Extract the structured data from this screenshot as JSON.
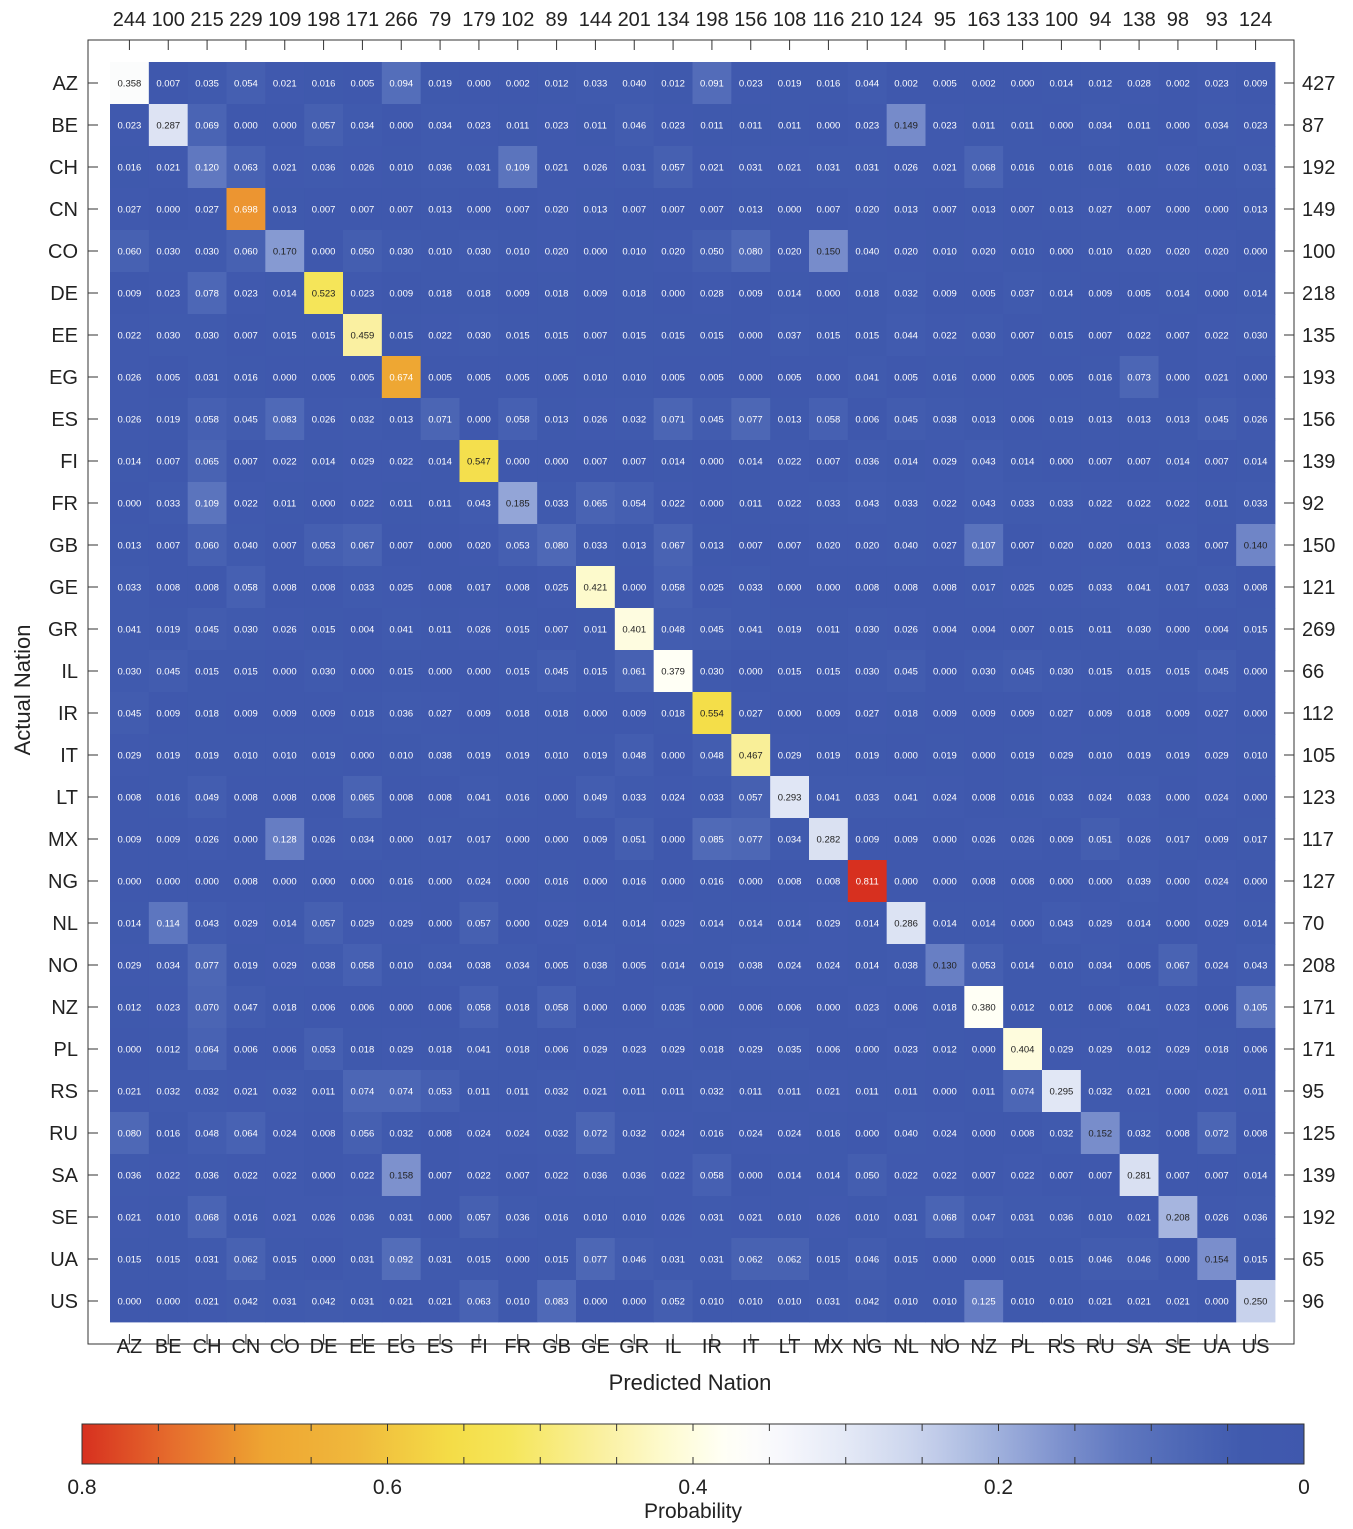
{
  "chart_data": {
    "type": "heatmap",
    "title": "",
    "xlabel": "Predicted Nation",
    "ylabel": "Actual Nation",
    "colorbar_label": "Probability",
    "colorbar_ticks": [
      "0.8",
      "0.6",
      "0.4",
      "0.2",
      "0"
    ],
    "colorbar_range": [
      0.8,
      0.0
    ],
    "colormap": [
      "#d7301f",
      "#f0a030",
      "#f5e84a",
      "#fdfce0",
      "#ffffff",
      "#dde3f4",
      "#9fb0dc",
      "#6278c0",
      "#3f58ad"
    ],
    "x_categories": [
      "AZ",
      "BE",
      "CH",
      "CN",
      "CO",
      "DE",
      "EE",
      "EG",
      "ES",
      "FI",
      "FR",
      "GB",
      "GE",
      "GR",
      "IL",
      "IR",
      "IT",
      "LT",
      "MX",
      "NG",
      "NL",
      "NO",
      "NZ",
      "PL",
      "RS",
      "RU",
      "SA",
      "SE",
      "UA",
      "US"
    ],
    "y_categories": [
      "AZ",
      "BE",
      "CH",
      "CN",
      "CO",
      "DE",
      "EE",
      "EG",
      "ES",
      "FI",
      "FR",
      "GB",
      "GE",
      "GR",
      "IL",
      "IR",
      "IT",
      "LT",
      "MX",
      "NG",
      "NL",
      "NO",
      "NZ",
      "PL",
      "RS",
      "RU",
      "SA",
      "SE",
      "UA",
      "US"
    ],
    "column_totals": [
      "244",
      "100",
      "215",
      "229",
      "109",
      "198",
      "171",
      "266",
      "79",
      "179",
      "102",
      "89",
      "144",
      "201",
      "134",
      "198",
      "156",
      "108",
      "116",
      "210",
      "124",
      "95",
      "163",
      "133",
      "100",
      "94",
      "138",
      "98",
      "93",
      "124"
    ],
    "row_totals": [
      "427",
      "87",
      "192",
      "149",
      "100",
      "218",
      "135",
      "193",
      "156",
      "139",
      "92",
      "150",
      "121",
      "269",
      "66",
      "112",
      "105",
      "123",
      "117",
      "127",
      "70",
      "208",
      "171",
      "171",
      "95",
      "125",
      "139",
      "192",
      "65",
      "96"
    ],
    "values": [
      [
        "0.358",
        "0.007",
        "0.035",
        "0.054",
        "0.021",
        "0.016",
        "0.005",
        "0.094",
        "0.019",
        "0.000",
        "0.002",
        "0.012",
        "0.033",
        "0.040",
        "0.012",
        "0.091",
        "0.023",
        "0.019",
        "0.016",
        "0.044",
        "0.002",
        "0.005",
        "0.002",
        "0.000",
        "0.014",
        "0.012",
        "0.028",
        "0.002",
        "0.023",
        "0.009"
      ],
      [
        "0.023",
        "0.287",
        "0.069",
        "0.000",
        "0.000",
        "0.057",
        "0.034",
        "0.000",
        "0.034",
        "0.023",
        "0.011",
        "0.023",
        "0.011",
        "0.046",
        "0.023",
        "0.011",
        "0.011",
        "0.011",
        "0.000",
        "0.023",
        "0.149",
        "0.023",
        "0.011",
        "0.011",
        "0.000",
        "0.034",
        "0.011",
        "0.000",
        "0.034",
        "0.023"
      ],
      [
        "0.016",
        "0.021",
        "0.120",
        "0.063",
        "0.021",
        "0.036",
        "0.026",
        "0.010",
        "0.036",
        "0.031",
        "0.109",
        "0.021",
        "0.026",
        "0.031",
        "0.057",
        "0.021",
        "0.031",
        "0.021",
        "0.031",
        "0.031",
        "0.026",
        "0.021",
        "0.068",
        "0.016",
        "0.016",
        "0.016",
        "0.010",
        "0.026",
        "0.010",
        "0.031"
      ],
      [
        "0.027",
        "0.000",
        "0.027",
        "0.698",
        "0.013",
        "0.007",
        "0.007",
        "0.007",
        "0.013",
        "0.000",
        "0.007",
        "0.020",
        "0.013",
        "0.007",
        "0.007",
        "0.007",
        "0.013",
        "0.000",
        "0.007",
        "0.020",
        "0.013",
        "0.007",
        "0.013",
        "0.007",
        "0.013",
        "0.027",
        "0.007",
        "0.000",
        "0.000",
        "0.013"
      ],
      [
        "0.060",
        "0.030",
        "0.030",
        "0.060",
        "0.170",
        "0.000",
        "0.050",
        "0.030",
        "0.010",
        "0.030",
        "0.010",
        "0.020",
        "0.000",
        "0.010",
        "0.020",
        "0.050",
        "0.080",
        "0.020",
        "0.150",
        "0.040",
        "0.020",
        "0.010",
        "0.020",
        "0.010",
        "0.000",
        "0.010",
        "0.020",
        "0.020",
        "0.020",
        "0.000"
      ],
      [
        "0.009",
        "0.023",
        "0.078",
        "0.023",
        "0.014",
        "0.523",
        "0.023",
        "0.009",
        "0.018",
        "0.018",
        "0.009",
        "0.018",
        "0.009",
        "0.018",
        "0.000",
        "0.028",
        "0.009",
        "0.014",
        "0.000",
        "0.018",
        "0.032",
        "0.009",
        "0.005",
        "0.037",
        "0.014",
        "0.009",
        "0.005",
        "0.014",
        "0.000",
        "0.014"
      ],
      [
        "0.022",
        "0.030",
        "0.030",
        "0.007",
        "0.015",
        "0.015",
        "0.459",
        "0.015",
        "0.022",
        "0.030",
        "0.015",
        "0.015",
        "0.007",
        "0.015",
        "0.015",
        "0.015",
        "0.000",
        "0.037",
        "0.015",
        "0.015",
        "0.044",
        "0.022",
        "0.030",
        "0.007",
        "0.015",
        "0.007",
        "0.022",
        "0.007",
        "0.022",
        "0.030"
      ],
      [
        "0.026",
        "0.005",
        "0.031",
        "0.016",
        "0.000",
        "0.005",
        "0.005",
        "0.674",
        "0.005",
        "0.005",
        "0.005",
        "0.005",
        "0.010",
        "0.010",
        "0.005",
        "0.005",
        "0.000",
        "0.005",
        "0.000",
        "0.041",
        "0.005",
        "0.016",
        "0.000",
        "0.005",
        "0.005",
        "0.016",
        "0.073",
        "0.000",
        "0.021",
        "0.000"
      ],
      [
        "0.026",
        "0.019",
        "0.058",
        "0.045",
        "0.083",
        "0.026",
        "0.032",
        "0.013",
        "0.071",
        "0.000",
        "0.058",
        "0.013",
        "0.026",
        "0.032",
        "0.071",
        "0.045",
        "0.077",
        "0.013",
        "0.058",
        "0.006",
        "0.045",
        "0.038",
        "0.013",
        "0.006",
        "0.019",
        "0.013",
        "0.013",
        "0.013",
        "0.045",
        "0.026"
      ],
      [
        "0.014",
        "0.007",
        "0.065",
        "0.007",
        "0.022",
        "0.014",
        "0.029",
        "0.022",
        "0.014",
        "0.547",
        "0.000",
        "0.000",
        "0.007",
        "0.007",
        "0.014",
        "0.000",
        "0.014",
        "0.022",
        "0.007",
        "0.036",
        "0.014",
        "0.029",
        "0.043",
        "0.014",
        "0.000",
        "0.007",
        "0.007",
        "0.014",
        "0.007",
        "0.014"
      ],
      [
        "0.000",
        "0.033",
        "0.109",
        "0.022",
        "0.011",
        "0.000",
        "0.022",
        "0.011",
        "0.011",
        "0.043",
        "0.185",
        "0.033",
        "0.065",
        "0.054",
        "0.022",
        "0.000",
        "0.011",
        "0.022",
        "0.033",
        "0.043",
        "0.033",
        "0.022",
        "0.043",
        "0.033",
        "0.033",
        "0.022",
        "0.022",
        "0.022",
        "0.011",
        "0.033"
      ],
      [
        "0.013",
        "0.007",
        "0.060",
        "0.040",
        "0.007",
        "0.053",
        "0.067",
        "0.007",
        "0.000",
        "0.020",
        "0.053",
        "0.080",
        "0.033",
        "0.013",
        "0.067",
        "0.013",
        "0.007",
        "0.007",
        "0.020",
        "0.020",
        "0.040",
        "0.027",
        "0.107",
        "0.007",
        "0.020",
        "0.020",
        "0.013",
        "0.033",
        "0.007",
        "0.140"
      ],
      [
        "0.033",
        "0.008",
        "0.008",
        "0.058",
        "0.008",
        "0.008",
        "0.033",
        "0.025",
        "0.008",
        "0.017",
        "0.008",
        "0.025",
        "0.421",
        "0.000",
        "0.058",
        "0.025",
        "0.033",
        "0.000",
        "0.000",
        "0.008",
        "0.008",
        "0.008",
        "0.017",
        "0.025",
        "0.025",
        "0.033",
        "0.041",
        "0.017",
        "0.033",
        "0.008"
      ],
      [
        "0.041",
        "0.019",
        "0.045",
        "0.030",
        "0.026",
        "0.015",
        "0.004",
        "0.041",
        "0.011",
        "0.026",
        "0.015",
        "0.007",
        "0.011",
        "0.401",
        "0.048",
        "0.045",
        "0.041",
        "0.019",
        "0.011",
        "0.030",
        "0.026",
        "0.004",
        "0.004",
        "0.007",
        "0.015",
        "0.011",
        "0.030",
        "0.000",
        "0.004",
        "0.015"
      ],
      [
        "0.030",
        "0.045",
        "0.015",
        "0.015",
        "0.000",
        "0.030",
        "0.000",
        "0.015",
        "0.000",
        "0.000",
        "0.015",
        "0.045",
        "0.015",
        "0.061",
        "0.379",
        "0.030",
        "0.000",
        "0.015",
        "0.015",
        "0.030",
        "0.045",
        "0.000",
        "0.030",
        "0.045",
        "0.030",
        "0.015",
        "0.015",
        "0.015",
        "0.045",
        "0.000"
      ],
      [
        "0.045",
        "0.009",
        "0.018",
        "0.009",
        "0.009",
        "0.009",
        "0.018",
        "0.036",
        "0.027",
        "0.009",
        "0.018",
        "0.018",
        "0.000",
        "0.009",
        "0.018",
        "0.554",
        "0.027",
        "0.000",
        "0.009",
        "0.027",
        "0.018",
        "0.009",
        "0.009",
        "0.009",
        "0.027",
        "0.009",
        "0.018",
        "0.009",
        "0.027",
        "0.000"
      ],
      [
        "0.029",
        "0.019",
        "0.019",
        "0.010",
        "0.010",
        "0.019",
        "0.000",
        "0.010",
        "0.038",
        "0.019",
        "0.019",
        "0.010",
        "0.019",
        "0.048",
        "0.000",
        "0.048",
        "0.467",
        "0.029",
        "0.019",
        "0.019",
        "0.000",
        "0.019",
        "0.000",
        "0.019",
        "0.029",
        "0.010",
        "0.019",
        "0.019",
        "0.029",
        "0.010"
      ],
      [
        "0.008",
        "0.016",
        "0.049",
        "0.008",
        "0.008",
        "0.008",
        "0.065",
        "0.008",
        "0.008",
        "0.041",
        "0.016",
        "0.000",
        "0.049",
        "0.033",
        "0.024",
        "0.033",
        "0.057",
        "0.293",
        "0.041",
        "0.033",
        "0.041",
        "0.024",
        "0.008",
        "0.016",
        "0.033",
        "0.024",
        "0.033",
        "0.000",
        "0.024",
        "0.000"
      ],
      [
        "0.009",
        "0.009",
        "0.026",
        "0.000",
        "0.128",
        "0.026",
        "0.034",
        "0.000",
        "0.017",
        "0.017",
        "0.000",
        "0.000",
        "0.009",
        "0.051",
        "0.000",
        "0.085",
        "0.077",
        "0.034",
        "0.282",
        "0.009",
        "0.009",
        "0.000",
        "0.026",
        "0.026",
        "0.009",
        "0.051",
        "0.026",
        "0.017",
        "0.009",
        "0.017"
      ],
      [
        "0.000",
        "0.000",
        "0.000",
        "0.008",
        "0.000",
        "0.000",
        "0.000",
        "0.016",
        "0.000",
        "0.024",
        "0.000",
        "0.016",
        "0.000",
        "0.016",
        "0.000",
        "0.016",
        "0.000",
        "0.008",
        "0.008",
        "0.811",
        "0.000",
        "0.000",
        "0.008",
        "0.008",
        "0.000",
        "0.000",
        "0.039",
        "0.000",
        "0.024",
        "0.000"
      ],
      [
        "0.014",
        "0.114",
        "0.043",
        "0.029",
        "0.014",
        "0.057",
        "0.029",
        "0.029",
        "0.000",
        "0.057",
        "0.000",
        "0.029",
        "0.014",
        "0.014",
        "0.029",
        "0.014",
        "0.014",
        "0.014",
        "0.029",
        "0.014",
        "0.286",
        "0.014",
        "0.014",
        "0.000",
        "0.043",
        "0.029",
        "0.014",
        "0.000",
        "0.029",
        "0.014"
      ],
      [
        "0.029",
        "0.034",
        "0.077",
        "0.019",
        "0.029",
        "0.038",
        "0.058",
        "0.010",
        "0.034",
        "0.038",
        "0.034",
        "0.005",
        "0.038",
        "0.005",
        "0.014",
        "0.019",
        "0.038",
        "0.024",
        "0.024",
        "0.014",
        "0.038",
        "0.130",
        "0.053",
        "0.014",
        "0.010",
        "0.034",
        "0.005",
        "0.067",
        "0.024",
        "0.043"
      ],
      [
        "0.012",
        "0.023",
        "0.070",
        "0.047",
        "0.018",
        "0.006",
        "0.006",
        "0.000",
        "0.006",
        "0.058",
        "0.018",
        "0.058",
        "0.000",
        "0.000",
        "0.035",
        "0.000",
        "0.006",
        "0.006",
        "0.000",
        "0.023",
        "0.006",
        "0.018",
        "0.380",
        "0.012",
        "0.012",
        "0.006",
        "0.041",
        "0.023",
        "0.006",
        "0.105"
      ],
      [
        "0.000",
        "0.012",
        "0.064",
        "0.006",
        "0.006",
        "0.053",
        "0.018",
        "0.029",
        "0.018",
        "0.041",
        "0.018",
        "0.006",
        "0.029",
        "0.023",
        "0.029",
        "0.018",
        "0.029",
        "0.035",
        "0.006",
        "0.000",
        "0.023",
        "0.012",
        "0.000",
        "0.404",
        "0.029",
        "0.029",
        "0.012",
        "0.029",
        "0.018",
        "0.006"
      ],
      [
        "0.021",
        "0.032",
        "0.032",
        "0.021",
        "0.032",
        "0.011",
        "0.074",
        "0.074",
        "0.053",
        "0.011",
        "0.011",
        "0.032",
        "0.021",
        "0.011",
        "0.011",
        "0.032",
        "0.011",
        "0.011",
        "0.021",
        "0.011",
        "0.011",
        "0.000",
        "0.011",
        "0.074",
        "0.295",
        "0.032",
        "0.021",
        "0.000",
        "0.021",
        "0.011"
      ],
      [
        "0.080",
        "0.016",
        "0.048",
        "0.064",
        "0.024",
        "0.008",
        "0.056",
        "0.032",
        "0.008",
        "0.024",
        "0.024",
        "0.032",
        "0.072",
        "0.032",
        "0.024",
        "0.016",
        "0.024",
        "0.024",
        "0.016",
        "0.000",
        "0.040",
        "0.024",
        "0.000",
        "0.008",
        "0.032",
        "0.152",
        "0.032",
        "0.008",
        "0.072",
        "0.008"
      ],
      [
        "0.036",
        "0.022",
        "0.036",
        "0.022",
        "0.022",
        "0.000",
        "0.022",
        "0.158",
        "0.007",
        "0.022",
        "0.007",
        "0.022",
        "0.036",
        "0.036",
        "0.022",
        "0.058",
        "0.000",
        "0.014",
        "0.014",
        "0.050",
        "0.022",
        "0.022",
        "0.007",
        "0.022",
        "0.007",
        "0.007",
        "0.281",
        "0.007",
        "0.007",
        "0.014"
      ],
      [
        "0.021",
        "0.010",
        "0.068",
        "0.016",
        "0.021",
        "0.026",
        "0.036",
        "0.031",
        "0.000",
        "0.057",
        "0.036",
        "0.016",
        "0.010",
        "0.010",
        "0.026",
        "0.031",
        "0.021",
        "0.010",
        "0.026",
        "0.010",
        "0.031",
        "0.068",
        "0.047",
        "0.031",
        "0.036",
        "0.010",
        "0.021",
        "0.208",
        "0.026",
        "0.036"
      ],
      [
        "0.015",
        "0.015",
        "0.031",
        "0.062",
        "0.015",
        "0.000",
        "0.031",
        "0.092",
        "0.031",
        "0.015",
        "0.000",
        "0.015",
        "0.077",
        "0.046",
        "0.031",
        "0.031",
        "0.062",
        "0.062",
        "0.015",
        "0.046",
        "0.015",
        "0.000",
        "0.000",
        "0.015",
        "0.015",
        "0.046",
        "0.046",
        "0.000",
        "0.154",
        "0.015"
      ],
      [
        "0.000",
        "0.000",
        "0.021",
        "0.042",
        "0.031",
        "0.042",
        "0.031",
        "0.021",
        "0.021",
        "0.063",
        "0.010",
        "0.083",
        "0.000",
        "0.000",
        "0.052",
        "0.010",
        "0.010",
        "0.010",
        "0.031",
        "0.042",
        "0.010",
        "0.010",
        "0.125",
        "0.010",
        "0.010",
        "0.021",
        "0.021",
        "0.021",
        "0.000",
        "0.250"
      ]
    ]
  }
}
